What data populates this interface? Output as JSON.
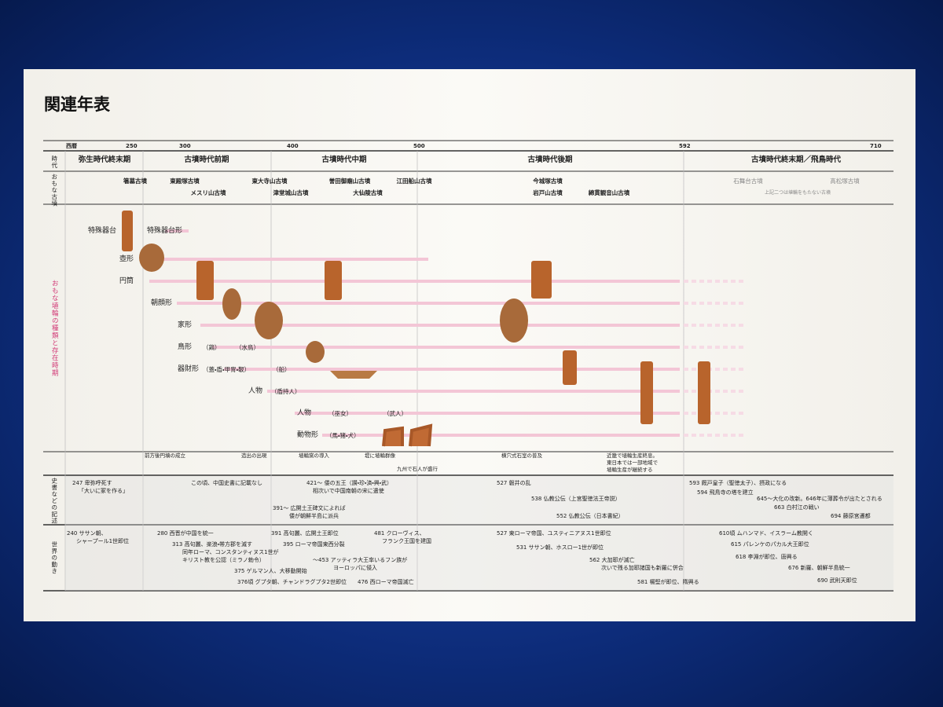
{
  "title": "関連年表",
  "years": {
    "label": "西暦",
    "ticks": [
      250,
      300,
      400,
      500,
      592,
      710
    ]
  },
  "periods": {
    "label": "時代",
    "items": [
      "弥生時代終末期",
      "古墳時代前期",
      "古墳時代中期",
      "古墳時代後期",
      "古墳時代終末期／飛鳥時代"
    ]
  },
  "tombs": {
    "label": "おもな古墳",
    "items": [
      "箸墓古墳",
      "東殿塚古墳",
      "メスリ山古墳",
      "東大寺山古墳",
      "津堂城山古墳",
      "誉田御廟山古墳",
      "大仙陵古墳",
      "江田船山古墳",
      "今城塚古墳",
      "岩戸山古墳",
      "綿貫観音山古墳",
      "石舞台古墳",
      "高松塚古墳"
    ],
    "note": "上記二つは埴輪をもたない古墳"
  },
  "haniwa": {
    "label": "おもな埴輪の種類と存在時期",
    "rows": [
      {
        "name": "特殊器台",
        "notes": []
      },
      {
        "name": "特殊器台形",
        "notes": []
      },
      {
        "name": "壺形",
        "notes": []
      },
      {
        "name": "円筒",
        "notes": []
      },
      {
        "name": "朝顔形",
        "notes": []
      },
      {
        "name": "家形",
        "notes": []
      },
      {
        "name": "鳥形",
        "notes": [
          "（鶏）",
          "（水鳥）"
        ]
      },
      {
        "name": "器財形",
        "notes": [
          "（蓋・盾・甲冑・靫）",
          "（船）"
        ]
      },
      {
        "name": "人物",
        "notes": [
          "（盾持人）"
        ]
      },
      {
        "name": "人物",
        "notes": [
          "（巫女）",
          "（武人）"
        ]
      },
      {
        "name": "動物形",
        "notes": [
          "（馬・猪・犬）"
        ]
      }
    ]
  },
  "events": [
    "前方後円墳の成立",
    "造出の出現",
    "埴輪窯の導入",
    "堤に埴輪群像",
    "九州で石人が盛行",
    "横穴式石室の普及",
    "近畿で埴輪生産終息。",
    "東日本では一部地域で",
    "埴輪生産が継続する"
  ],
  "history": {
    "label": "史書などの記述",
    "items": [
      "247 卑弥呼死す",
      "「大いに冢を作る」",
      "この頃、中国史書に記載なし",
      "421～ 倭の五王（讃・珍・済・興・武）",
      "相次いで中国南朝の宋に遣使",
      "391～ 広開土王碑文によれば",
      "倭が朝鮮半島に派兵",
      "527 磐井の乱",
      "538 仏教公伝（上宮聖徳法王帝説）",
      "552 仏教公伝（日本書紀）",
      "593 厩戸皇子（聖徳太子）、摂政になる",
      "594 飛鳥寺の塔を建立",
      "645～大化の改新。646年に薄葬令が出たとされる",
      "663 白村江の戦い",
      "694 藤原宮遷都"
    ]
  },
  "world": {
    "label": "世界の動き",
    "items": [
      "240 ササン朝、",
      "シャープール1世即位",
      "280 西晋が中国を統一",
      "313 高句麗、楽浪・帯方郡を滅す",
      "同年ローマ、コンスタンティヌス1世が",
      "キリスト教を公認（ミラノ勅令）",
      "375 ゲルマン人、大移動開始",
      "376頃 グプタ朝、チャンドラグプタ2世即位",
      "391 高句麗、広開土王即位",
      "395 ローマ帝国東西分裂",
      "～453 アッティラ大王率いるフン族が",
      "ヨーロッパに侵入",
      "476 西ローマ帝国滅亡",
      "481 クローヴィス、",
      "フランク王国を建国",
      "527 東ローマ帝国、ユスティニアヌス1世即位",
      "531 ササン朝、ホスロー1世が即位",
      "562 大加耶が滅亡",
      "次いで残る加耶諸国も新羅に併合",
      "581 楊堅が即位、隋興る",
      "610頃 ムハンマド、イスラーム教開く",
      "615 パレンケのパカル大王即位",
      "618 李淵が即位、唐興る",
      "676 新羅、朝鮮半島統一",
      "690 武則天即位"
    ]
  }
}
